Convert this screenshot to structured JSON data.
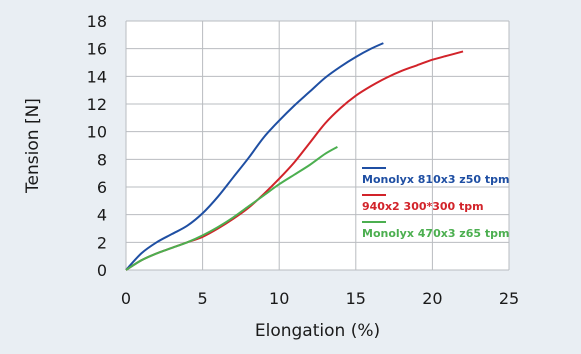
{
  "chart_data": {
    "type": "line",
    "xlabel": "Elongation (%)",
    "ylabel": "Tension [N]",
    "xlim": [
      0,
      25
    ],
    "ylim": [
      0,
      18
    ],
    "x_ticks": [
      0,
      5,
      10,
      15,
      20,
      25
    ],
    "y_ticks": [
      0,
      2,
      4,
      6,
      8,
      10,
      12,
      14,
      16,
      18
    ],
    "grid": true,
    "legend_position": "right",
    "series": [
      {
        "name": "Monolyx 810x3 z50 tpm",
        "color": "#1f4fa3",
        "x": [
          0,
          1,
          2,
          3,
          4,
          5,
          6,
          7,
          8,
          9,
          10,
          11,
          12,
          13,
          14,
          15,
          16,
          16.8
        ],
        "y": [
          0,
          1.2,
          2.0,
          2.6,
          3.2,
          4.1,
          5.3,
          6.7,
          8.1,
          9.6,
          10.8,
          11.9,
          12.9,
          13.9,
          14.7,
          15.4,
          16.0,
          16.4
        ]
      },
      {
        "name": "940x2 300*300 tpm",
        "color": "#d2232a",
        "x": [
          0,
          1,
          2,
          3,
          4,
          5,
          6,
          7,
          8,
          9,
          10,
          11,
          12,
          13,
          14,
          15,
          16,
          17,
          18,
          19,
          20,
          21,
          22
        ],
        "y": [
          0,
          0.7,
          1.2,
          1.6,
          2.0,
          2.4,
          3.0,
          3.7,
          4.5,
          5.5,
          6.6,
          7.8,
          9.2,
          10.6,
          11.7,
          12.6,
          13.3,
          13.9,
          14.4,
          14.8,
          15.2,
          15.5,
          15.8
        ]
      },
      {
        "name": "Monolyx 470x3 z65 tpm",
        "color": "#4caf50",
        "x": [
          0,
          1,
          2,
          3,
          4,
          5,
          6,
          7,
          8,
          9,
          10,
          11,
          12,
          13,
          13.8
        ],
        "y": [
          0,
          0.7,
          1.2,
          1.6,
          2.0,
          2.5,
          3.1,
          3.8,
          4.6,
          5.4,
          6.2,
          6.9,
          7.6,
          8.4,
          8.9
        ]
      }
    ]
  }
}
